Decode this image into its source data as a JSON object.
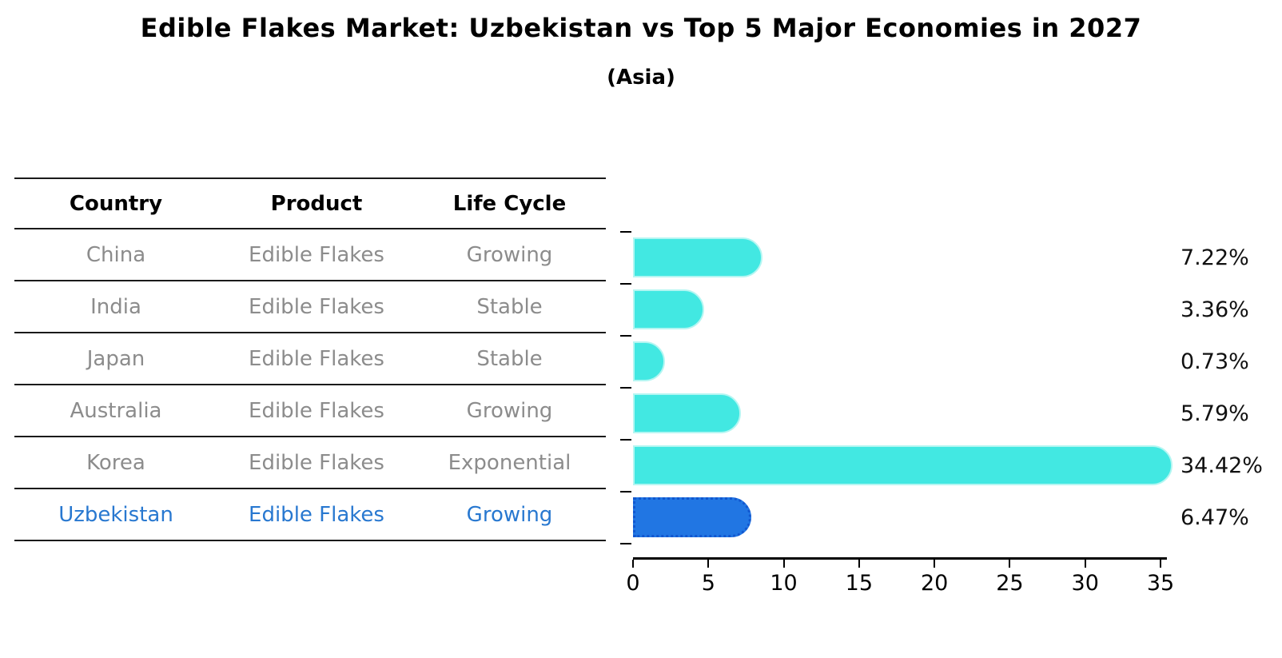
{
  "title": "Edible Flakes Market: Uzbekistan vs Top 5 Major Economies in 2027",
  "subtitle": "(Asia)",
  "table": {
    "headers": [
      "Country",
      "Product",
      "Life Cycle"
    ],
    "rows": [
      {
        "country": "China",
        "product": "Edible Flakes",
        "life_cycle": "Growing",
        "highlight": false
      },
      {
        "country": "India",
        "product": "Edible Flakes",
        "life_cycle": "Stable",
        "highlight": false
      },
      {
        "country": "Japan",
        "product": "Edible Flakes",
        "life_cycle": "Stable",
        "highlight": false
      },
      {
        "country": "Australia",
        "product": "Edible Flakes",
        "life_cycle": "Growing",
        "highlight": false
      },
      {
        "country": "Korea",
        "product": "Edible Flakes",
        "life_cycle": "Exponential",
        "highlight": false
      },
      {
        "country": "Uzbekistan",
        "product": "Edible Flakes",
        "life_cycle": "Growing",
        "highlight": true
      }
    ]
  },
  "chart_data": {
    "type": "bar",
    "orientation": "horizontal",
    "categories": [
      "China",
      "India",
      "Japan",
      "Australia",
      "Korea",
      "Uzbekistan"
    ],
    "values": [
      7.22,
      3.36,
      0.73,
      5.79,
      34.42,
      6.47
    ],
    "labels": [
      "7.22%",
      "3.36%",
      "0.73%",
      "5.79%",
      "34.42%",
      "6.47%"
    ],
    "x_ticks": [
      0,
      5,
      10,
      15,
      20,
      25,
      30,
      35
    ],
    "xlim": [
      0,
      35.4
    ],
    "title": "Edible Flakes Market: Uzbekistan vs Top 5 Major Economies in 2027",
    "subtitle": "(Asia)",
    "xlabel": "",
    "ylabel": "",
    "grid": false,
    "legend": false,
    "bar_color": "#42e8e2",
    "highlight_color": "#2176e3",
    "highlight_index": 5,
    "highlight_text_color": "#2878d0",
    "table_text_color": "#8c8c8c"
  }
}
